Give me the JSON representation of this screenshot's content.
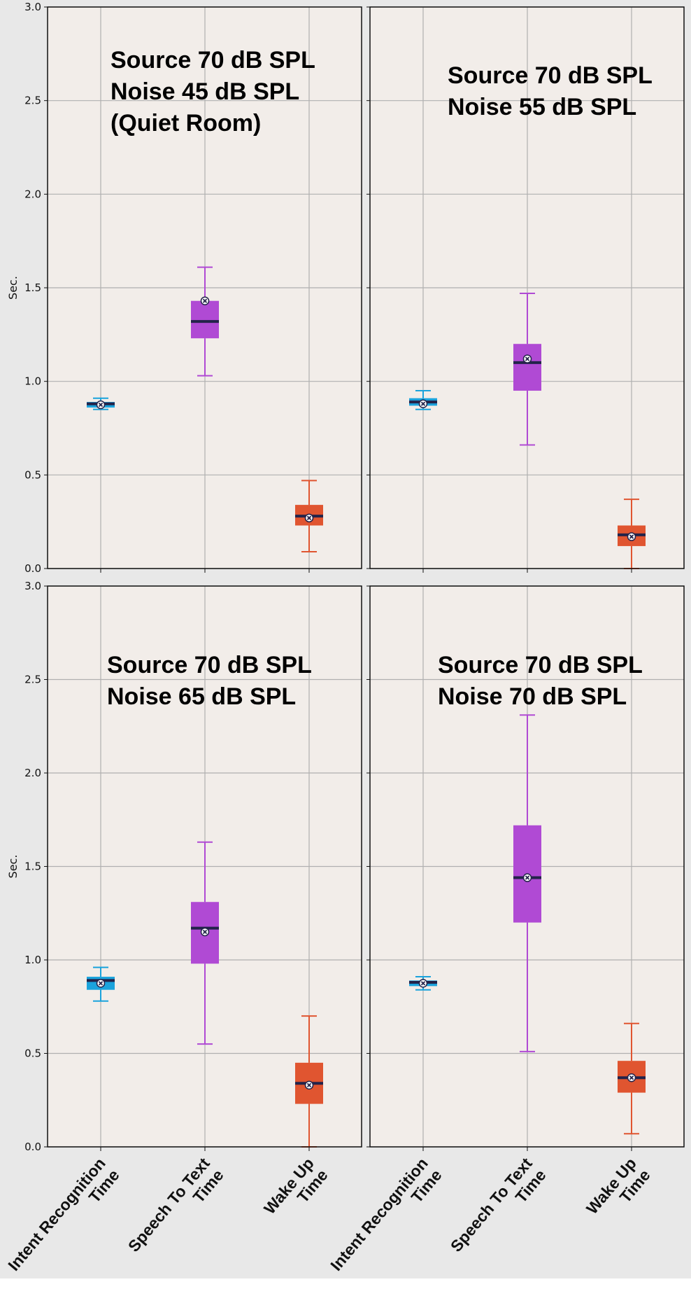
{
  "chart_data": [
    {
      "type": "box",
      "annotation": [
        "Source 70 dB SPL",
        "Noise 45 dB SPL",
        "(Quiet Room)"
      ],
      "ylabel": "Sec.",
      "ylim": [
        0,
        3.0
      ],
      "yticks": [
        "0.0",
        "0.5",
        "1.0",
        "1.5",
        "2.0",
        "2.5",
        "3.0"
      ],
      "grid": true,
      "categories": [],
      "boxes": [
        {
          "category": "Intent Recognition Time",
          "whisker_low": 0.85,
          "q1": 0.86,
          "median": 0.88,
          "q3": 0.89,
          "whisker_high": 0.91,
          "mean": 0.875
        },
        {
          "category": "Speech To Text Time",
          "whisker_low": 1.03,
          "q1": 1.23,
          "median": 1.32,
          "q3": 1.43,
          "whisker_high": 1.61,
          "mean": 1.43
        },
        {
          "category": "Wake Up Time",
          "whisker_low": 0.09,
          "q1": 0.23,
          "median": 0.28,
          "q3": 0.34,
          "whisker_high": 0.47,
          "mean": 0.27
        }
      ]
    },
    {
      "type": "box",
      "annotation": [
        "Source 70 dB SPL",
        "Noise 55 dB SPL"
      ],
      "ylabel": "",
      "ylim": [
        0,
        3.0
      ],
      "yticks": [],
      "grid": true,
      "categories": [],
      "boxes": [
        {
          "category": "Intent Recognition Time",
          "whisker_low": 0.85,
          "q1": 0.87,
          "median": 0.89,
          "q3": 0.91,
          "whisker_high": 0.95,
          "mean": 0.88
        },
        {
          "category": "Speech To Text Time",
          "whisker_low": 0.66,
          "q1": 0.95,
          "median": 1.1,
          "q3": 1.2,
          "whisker_high": 1.47,
          "mean": 1.12
        },
        {
          "category": "Wake Up Time",
          "whisker_low": 0.0,
          "q1": 0.12,
          "median": 0.18,
          "q3": 0.23,
          "whisker_high": 0.37,
          "mean": 0.17
        }
      ]
    },
    {
      "type": "box",
      "annotation": [
        "Source 70 dB SPL",
        "Noise 65 dB SPL"
      ],
      "ylabel": "Sec.",
      "ylim": [
        0,
        3.0
      ],
      "yticks": [
        "0.0",
        "0.5",
        "1.0",
        "1.5",
        "2.0",
        "2.5",
        "3.0"
      ],
      "grid": true,
      "categories": [
        "Intent Recognition\nTime",
        "Speech To Text\nTime",
        "Wake Up\nTime"
      ],
      "boxes": [
        {
          "category": "Intent Recognition Time",
          "whisker_low": 0.78,
          "q1": 0.84,
          "median": 0.89,
          "q3": 0.91,
          "whisker_high": 0.96,
          "mean": 0.875
        },
        {
          "category": "Speech To Text Time",
          "whisker_low": 0.55,
          "q1": 0.98,
          "median": 1.17,
          "q3": 1.31,
          "whisker_high": 1.63,
          "mean": 1.15
        },
        {
          "category": "Wake Up Time",
          "whisker_low": 0.0,
          "q1": 0.23,
          "median": 0.34,
          "q3": 0.45,
          "whisker_high": 0.7,
          "mean": 0.33
        }
      ]
    },
    {
      "type": "box",
      "annotation": [
        "Source 70 dB SPL",
        "Noise 70 dB SPL"
      ],
      "ylabel": "",
      "ylim": [
        0,
        3.0
      ],
      "yticks": [],
      "grid": true,
      "categories": [
        "Intent Recognition\nTime",
        "Speech To Text\nTime",
        "Wake Up\nTime"
      ],
      "boxes": [
        {
          "category": "Intent Recognition Time",
          "whisker_low": 0.84,
          "q1": 0.86,
          "median": 0.88,
          "q3": 0.89,
          "whisker_high": 0.91,
          "mean": 0.875
        },
        {
          "category": "Speech To Text Time",
          "whisker_low": 0.51,
          "q1": 1.2,
          "median": 1.44,
          "q3": 1.72,
          "whisker_high": 2.31,
          "mean": 1.44
        },
        {
          "category": "Wake Up Time",
          "whisker_low": 0.07,
          "q1": 0.29,
          "median": 0.37,
          "q3": 0.46,
          "whisker_high": 0.66,
          "mean": 0.37
        }
      ]
    }
  ],
  "colors": {
    "figure_background": "#e8e8e8",
    "axes_background": "#f2ede9",
    "grid": "#b0b0b0",
    "intent": "#1ba3dc",
    "speech": "#b04ad4",
    "wake": "#e05530",
    "median": "#23234a",
    "mean_marker_fill": "#ffffff",
    "mean_marker_edge": "#23234a"
  }
}
